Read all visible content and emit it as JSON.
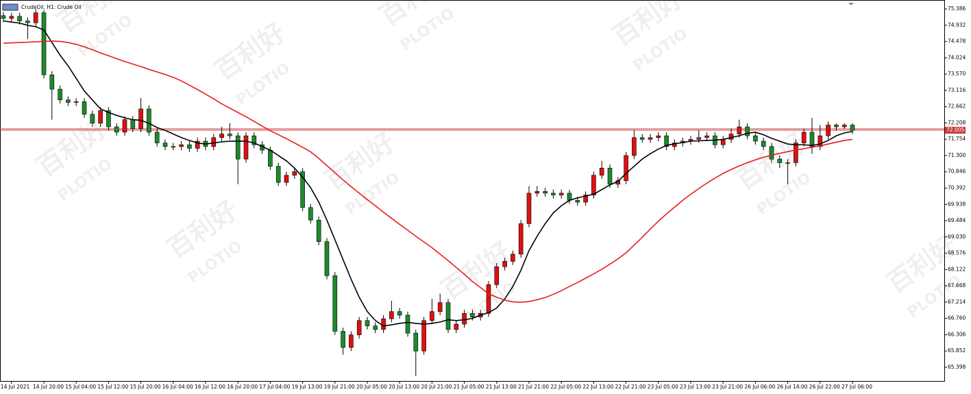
{
  "chart_data": {
    "type": "candlestick",
    "title": "CrudeOil, H1:  Crude Oil",
    "watermark": [
      "百利好",
      "PLOTIO"
    ],
    "categories": [
      null,
      "14 Jul 2021",
      null,
      null,
      null,
      "14 Jul 20:00",
      null,
      null,
      null,
      "15 Jul 04:00",
      null,
      null,
      null,
      "15 Jul 12:00",
      null,
      null,
      null,
      "15 Jul 20:00",
      null,
      null,
      null,
      "16 Jul 04:00",
      null,
      null,
      null,
      "16 Jul 12:00",
      null,
      null,
      null,
      "16 Jul 20:00",
      null,
      null,
      null,
      "17 Jul 04:00",
      null,
      null,
      null,
      "19 Jul 13:00",
      null,
      null,
      null,
      "19 Jul 21:00",
      null,
      null,
      null,
      "20 Jul 05:00",
      null,
      null,
      null,
      "20 Jul 13:00",
      null,
      null,
      null,
      "20 Jul 21:00",
      null,
      null,
      null,
      "21 Jul 05:00",
      null,
      null,
      null,
      "21 Jul 13:00",
      null,
      null,
      null,
      "21 Jul 21:00",
      null,
      null,
      null,
      "22 Jul 05:00",
      null,
      null,
      null,
      "22 Jul 13:00",
      null,
      null,
      null,
      "22 Jul 21:00",
      null,
      null,
      null,
      "23 Jul 05:00",
      null,
      null,
      null,
      "23 Jul 13:00",
      null,
      null,
      null,
      "23 Jul 21:00",
      null,
      null,
      null,
      "26 Jul 06:00",
      null,
      null,
      null,
      "26 Jul 14:00",
      null,
      null,
      null,
      "26 Jul 22:00",
      null,
      null,
      null,
      "27 Jul 06:00"
    ],
    "open": [
      75.2,
      75.12,
      75.18,
      75.05,
      75.0,
      75.28,
      73.55,
      73.15,
      72.85,
      72.78,
      72.8,
      72.45,
      72.2,
      72.55,
      72.1,
      71.95,
      72.3,
      72.05,
      72.6,
      71.95,
      71.65,
      71.55,
      71.55,
      71.6,
      71.5,
      71.7,
      71.55,
      71.8,
      71.9,
      71.85,
      71.2,
      71.85,
      71.6,
      71.45,
      71.0,
      70.55,
      70.75,
      70.85,
      69.85,
      69.5,
      68.9,
      67.95,
      66.4,
      65.95,
      66.3,
      66.7,
      66.55,
      66.45,
      66.75,
      66.95,
      66.85,
      66.35,
      65.85,
      66.7,
      66.95,
      67.2,
      66.45,
      66.6,
      66.9,
      66.8,
      66.9,
      67.7,
      68.2,
      68.35,
      68.55,
      69.4,
      70.25,
      70.3,
      70.25,
      70.2,
      70.25,
      70.05,
      70.0,
      70.2,
      70.75,
      70.95,
      70.5,
      70.6,
      71.3,
      71.8,
      71.75,
      71.8,
      71.85,
      71.55,
      71.65,
      71.7,
      71.75,
      71.8,
      71.85,
      71.6,
      71.75,
      71.9,
      72.1,
      71.85,
      71.7,
      71.55,
      71.2,
      71.1,
      71.1,
      71.65,
      71.95,
      71.55,
      71.85,
      72.15,
      72.1,
      72.15
    ],
    "high": [
      75.3,
      75.28,
      75.28,
      75.15,
      75.38,
      75.35,
      73.65,
      73.25,
      72.95,
      72.9,
      72.9,
      72.55,
      72.65,
      72.65,
      72.2,
      72.4,
      72.4,
      72.9,
      72.7,
      72.05,
      71.75,
      71.65,
      71.7,
      71.7,
      71.8,
      71.8,
      71.9,
      72.1,
      72.2,
      71.95,
      71.95,
      71.95,
      71.7,
      71.55,
      71.1,
      70.85,
      70.95,
      70.95,
      69.95,
      69.6,
      69.0,
      68.05,
      66.5,
      66.4,
      66.8,
      66.8,
      66.65,
      66.85,
      67.25,
      67.05,
      66.95,
      66.45,
      66.8,
      67.3,
      67.45,
      67.3,
      66.7,
      67.0,
      67.0,
      67.0,
      67.8,
      68.3,
      68.45,
      68.65,
      69.5,
      70.45,
      70.45,
      70.4,
      70.35,
      70.35,
      70.35,
      70.15,
      70.3,
      70.85,
      71.15,
      71.05,
      70.7,
      71.4,
      72.0,
      71.9,
      71.9,
      71.95,
      71.95,
      71.75,
      71.8,
      71.85,
      72.0,
      71.95,
      71.95,
      71.85,
      72.05,
      72.3,
      72.2,
      71.95,
      71.8,
      71.65,
      71.3,
      71.2,
      71.75,
      72.05,
      72.35,
      72.15,
      72.25,
      72.2,
      72.2,
      72.2
    ],
    "low": [
      75.02,
      75.02,
      74.95,
      74.55,
      74.9,
      73.45,
      72.3,
      72.75,
      72.68,
      72.68,
      72.35,
      72.1,
      72.1,
      72.0,
      71.85,
      71.85,
      71.95,
      71.95,
      71.85,
      71.55,
      71.45,
      71.45,
      71.45,
      71.4,
      71.4,
      71.45,
      71.45,
      71.7,
      71.75,
      70.5,
      71.1,
      71.5,
      71.35,
      70.9,
      70.45,
      70.45,
      70.65,
      69.75,
      69.4,
      68.8,
      67.85,
      66.3,
      65.75,
      65.85,
      66.2,
      66.45,
      66.35,
      66.35,
      66.65,
      66.75,
      66.25,
      65.15,
      65.75,
      66.6,
      66.85,
      66.35,
      66.35,
      66.5,
      66.7,
      66.7,
      66.8,
      67.6,
      68.1,
      68.25,
      68.45,
      69.3,
      70.15,
      70.15,
      70.1,
      70.1,
      69.95,
      69.9,
      69.9,
      70.1,
      70.65,
      70.4,
      70.4,
      70.5,
      71.2,
      71.65,
      71.65,
      71.7,
      71.45,
      71.45,
      71.55,
      71.6,
      71.65,
      71.7,
      71.5,
      71.5,
      71.65,
      71.8,
      71.75,
      71.6,
      71.45,
      71.1,
      70.95,
      70.5,
      71.0,
      71.55,
      71.35,
      71.45,
      71.75,
      72.0,
      72.05,
      71.9
    ],
    "close": [
      75.12,
      75.18,
      75.05,
      75.0,
      75.28,
      73.55,
      73.15,
      72.85,
      72.78,
      72.8,
      72.45,
      72.2,
      72.55,
      72.1,
      71.95,
      72.3,
      72.05,
      72.6,
      71.95,
      71.65,
      71.55,
      71.55,
      71.6,
      71.5,
      71.7,
      71.55,
      71.8,
      71.9,
      71.85,
      71.2,
      71.85,
      71.6,
      71.45,
      71.0,
      70.55,
      70.75,
      70.85,
      69.85,
      69.5,
      68.9,
      67.95,
      66.4,
      65.95,
      66.3,
      66.7,
      66.55,
      66.45,
      66.75,
      66.95,
      66.85,
      66.35,
      65.85,
      66.7,
      66.95,
      67.2,
      66.45,
      66.6,
      66.9,
      66.8,
      66.9,
      67.7,
      68.2,
      68.35,
      68.55,
      69.4,
      70.25,
      70.3,
      70.25,
      70.2,
      70.25,
      70.05,
      70.0,
      70.2,
      70.75,
      70.95,
      70.5,
      70.6,
      71.3,
      71.8,
      71.75,
      71.8,
      71.85,
      71.55,
      71.65,
      71.7,
      71.75,
      71.8,
      71.85,
      71.6,
      71.75,
      71.9,
      72.1,
      71.85,
      71.7,
      71.55,
      71.2,
      71.1,
      71.1,
      71.65,
      71.95,
      71.55,
      71.85,
      72.15,
      72.1,
      72.15,
      72.0
    ],
    "up_color": "#e01010",
    "down_color": "#1e8a2e",
    "series": [
      {
        "color": "#000000",
        "values": [
          75.05,
          75.02,
          74.99,
          74.93,
          74.89,
          74.8,
          74.45,
          74.1,
          73.8,
          73.45,
          73.1,
          72.85,
          72.6,
          72.5,
          72.42,
          72.35,
          72.3,
          72.28,
          72.2,
          72.08,
          72.0,
          71.9,
          71.8,
          71.72,
          71.65,
          71.62,
          71.65,
          71.68,
          71.7,
          71.7,
          71.7,
          71.65,
          71.55,
          71.45,
          71.3,
          71.15,
          70.95,
          70.7,
          70.4,
          70.0,
          69.5,
          68.95,
          68.4,
          67.85,
          67.35,
          66.95,
          66.7,
          66.55,
          66.58,
          66.62,
          66.65,
          66.62,
          66.6,
          66.62,
          66.66,
          66.72,
          66.7,
          66.72,
          66.76,
          66.85,
          66.92,
          67.05,
          67.3,
          67.65,
          68.1,
          68.65,
          69.05,
          69.4,
          69.7,
          69.9,
          70.05,
          70.12,
          70.17,
          70.22,
          70.35,
          70.48,
          70.58,
          70.8,
          71.0,
          71.2,
          71.35,
          71.48,
          71.58,
          71.63,
          71.66,
          71.7,
          71.71,
          71.72,
          71.73,
          71.75,
          71.8,
          71.85,
          71.92,
          71.95,
          71.88,
          71.78,
          71.7,
          71.62,
          71.6,
          71.6,
          71.58,
          71.62,
          71.72,
          71.85,
          71.93,
          71.97
        ]
      },
      {
        "color": "#e81c1c",
        "values": [
          74.43,
          74.44,
          74.45,
          74.46,
          74.47,
          74.48,
          74.49,
          74.48,
          74.45,
          74.4,
          74.33,
          74.25,
          74.16,
          74.08,
          74.0,
          73.92,
          73.85,
          73.78,
          73.7,
          73.63,
          73.56,
          73.48,
          73.38,
          73.26,
          73.14,
          73.01,
          72.88,
          72.74,
          72.62,
          72.5,
          72.38,
          72.25,
          72.12,
          71.99,
          71.88,
          71.77,
          71.65,
          71.53,
          71.4,
          71.22,
          71.02,
          70.82,
          70.62,
          70.43,
          70.25,
          70.07,
          69.9,
          69.72,
          69.55,
          69.38,
          69.22,
          69.05,
          68.89,
          68.73,
          68.55,
          68.37,
          68.18,
          67.99,
          67.79,
          67.62,
          67.45,
          67.35,
          67.27,
          67.22,
          67.21,
          67.23,
          67.28,
          67.34,
          67.43,
          67.53,
          67.65,
          67.76,
          67.88,
          68.0,
          68.13,
          68.27,
          68.42,
          68.59,
          68.8,
          69.02,
          69.25,
          69.47,
          69.67,
          69.86,
          70.05,
          70.22,
          70.38,
          70.53,
          70.67,
          70.8,
          70.91,
          71.01,
          71.1,
          71.18,
          71.25,
          71.31,
          71.36,
          71.41,
          71.45,
          71.49,
          71.53,
          71.57,
          71.62,
          71.67,
          71.72,
          71.75
        ]
      }
    ],
    "bid": 72.005,
    "ask": 72.045,
    "price_line_color": "#c83c3c",
    "ylim": [
      65.015,
      75.635
    ],
    "yticks": [
      75.386,
      74.932,
      74.478,
      74.024,
      {
        "value": 73.57,
        "label": "73.570"
      },
      73.116,
      72.662,
      72.208,
      71.754,
      {
        "value": 71.3,
        "label": "71.300"
      },
      70.846,
      70.392,
      69.938,
      69.484,
      {
        "value": 69.03,
        "label": "69.030"
      },
      68.576,
      68.122,
      67.668,
      67.214,
      {
        "value": 66.76,
        "label": "66.760"
      },
      66.306,
      65.852,
      65.398
    ]
  }
}
